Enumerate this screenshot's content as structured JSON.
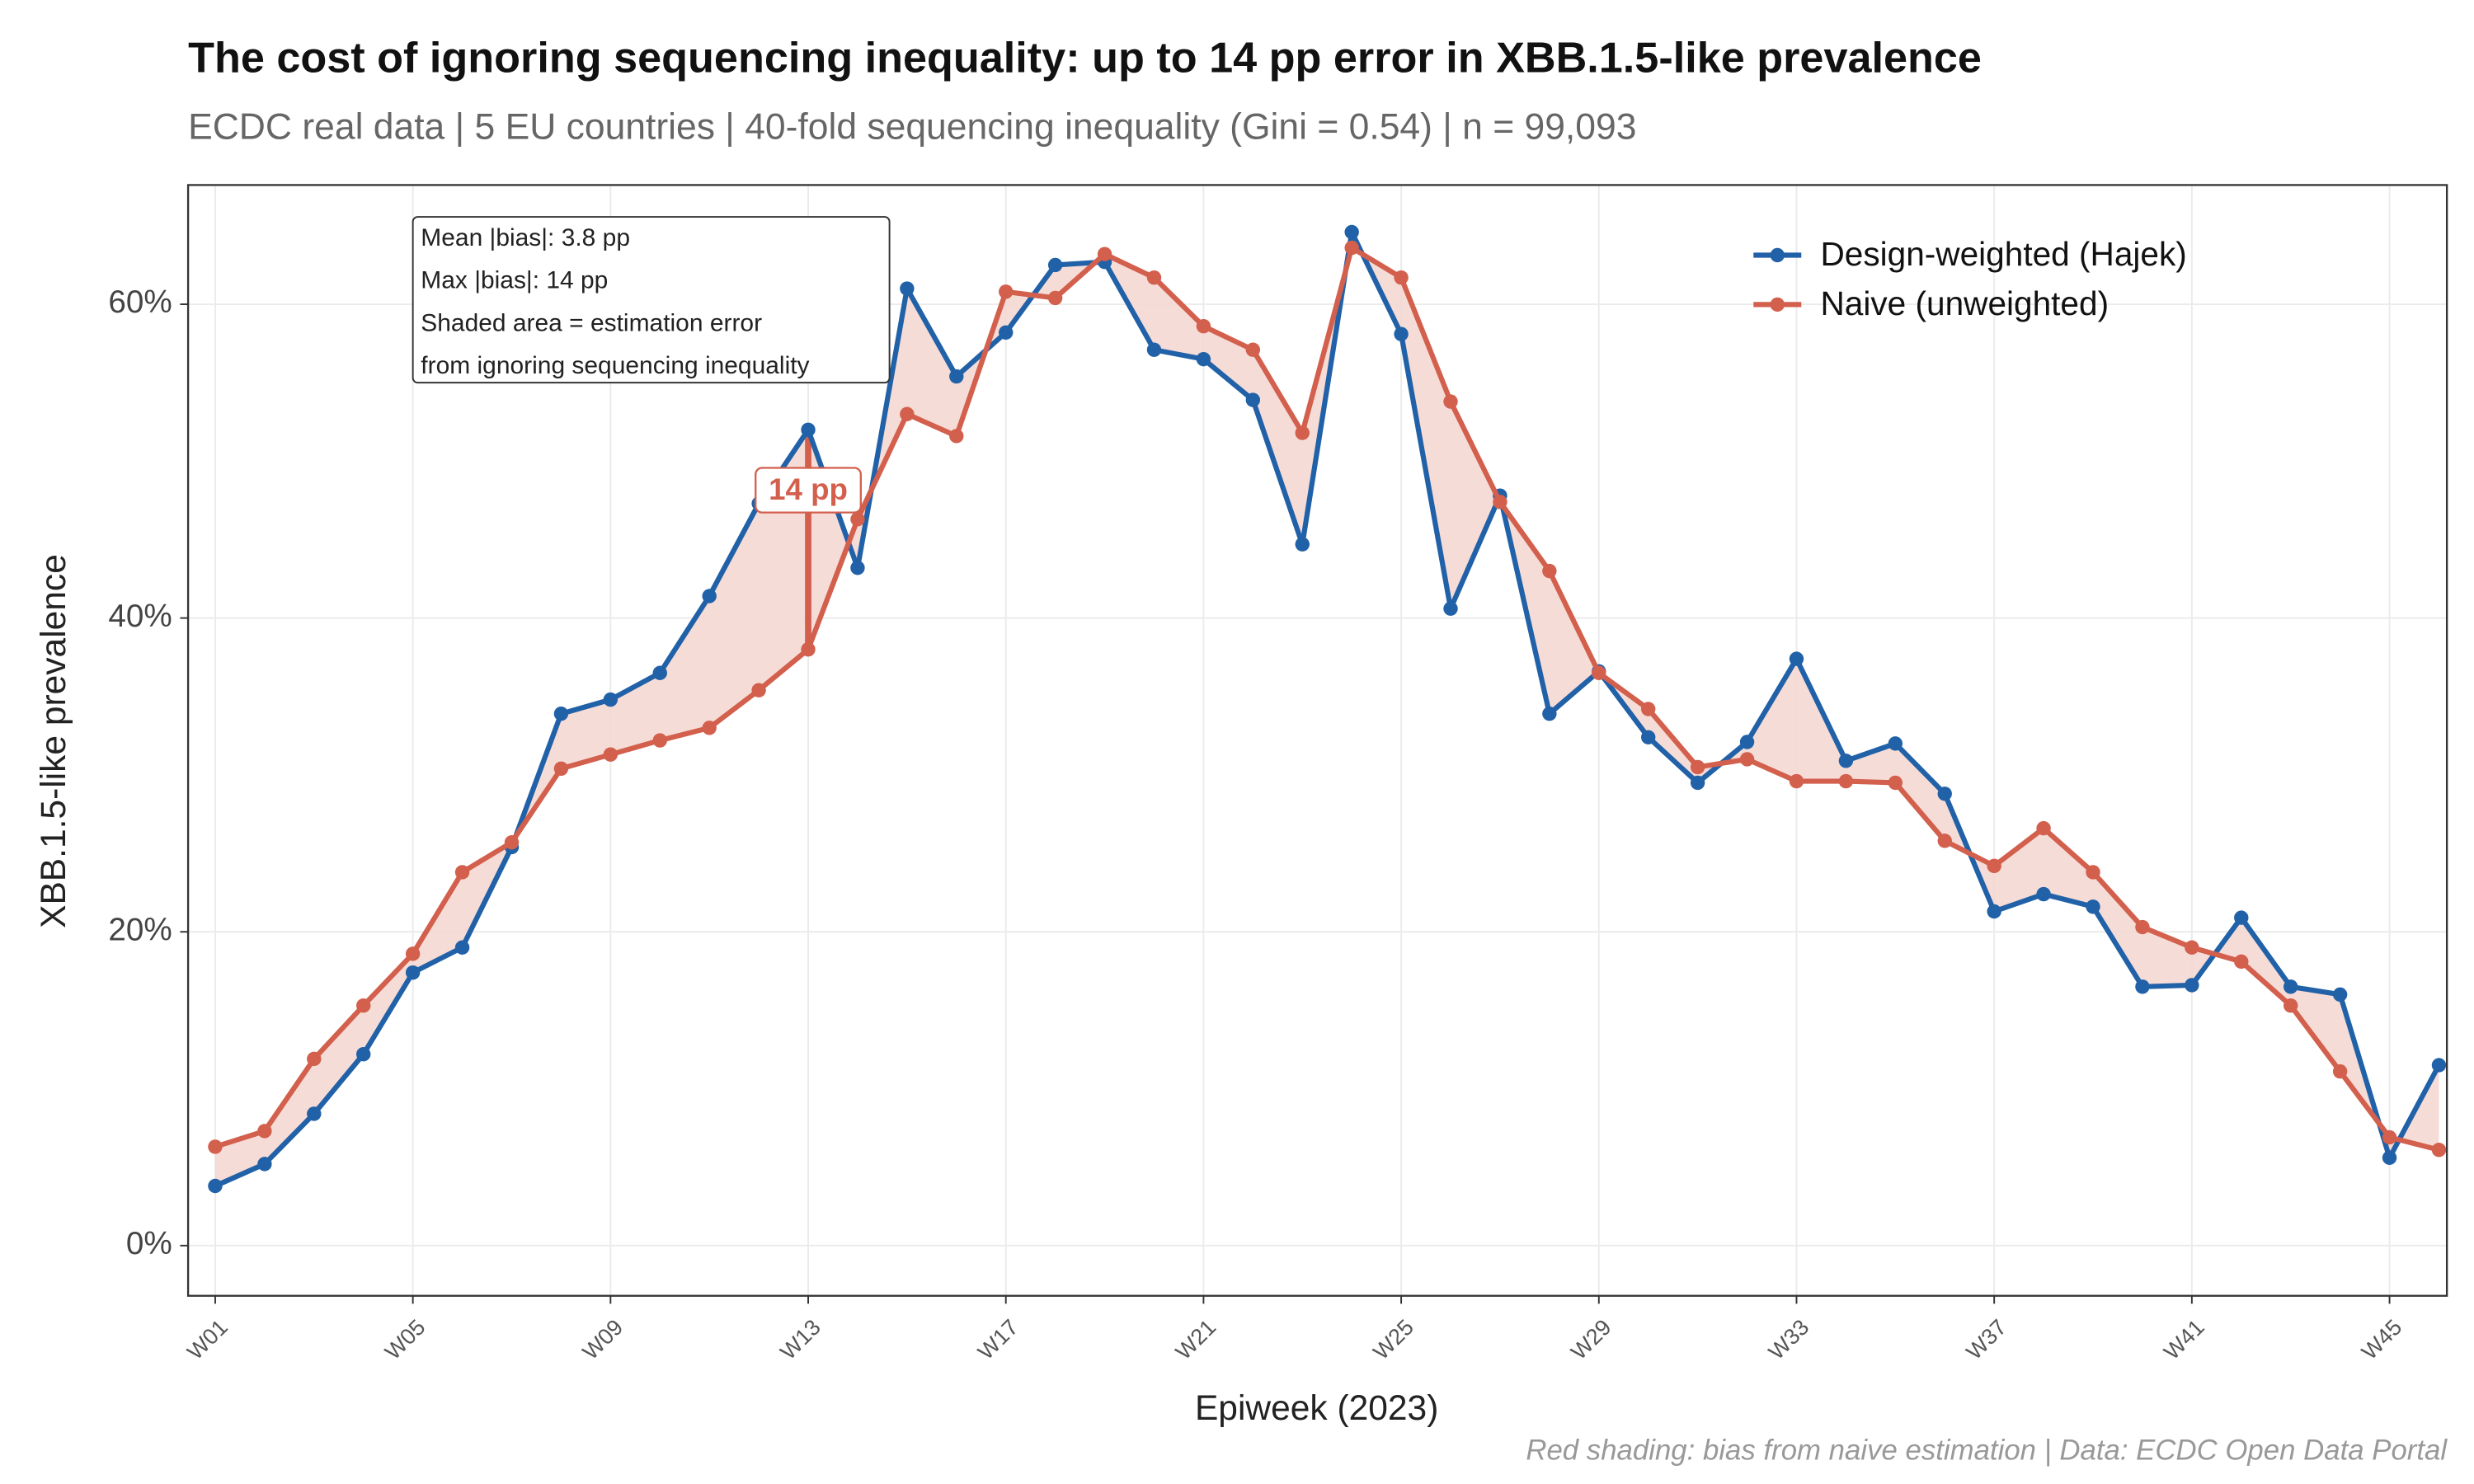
{
  "chart_data": {
    "type": "line",
    "title": "The cost of ignoring sequencing inequality: up to 14 pp error in XBB.1.5-like prevalence",
    "subtitle": "ECDC real data | 5 EU countries | 40-fold sequencing inequality (Gini = 0.54) | n = 99,093",
    "x_label": "Epiweek (2023)",
    "y_label": "XBB.1.5-like prevalence",
    "caption": "Red shading: bias from naive estimation | Data: ECDC Open Data Portal",
    "annotation_box": [
      "Mean |bias|: 3.8 pp",
      "Max |bias|: 14 pp",
      "Shaded area = estimation error",
      "from ignoring sequencing inequality"
    ],
    "max_bias_label": "14 pp",
    "categories": [
      "W01",
      null,
      null,
      null,
      "W05",
      null,
      null,
      null,
      "W09",
      null,
      null,
      null,
      "W13",
      null,
      null,
      null,
      "W17",
      null,
      null,
      null,
      "W21",
      null,
      null,
      null,
      "W25",
      null,
      null,
      null,
      "W29",
      null,
      null,
      null,
      "W33",
      null,
      null,
      null,
      "W37",
      null,
      null,
      null,
      "W41",
      null,
      null,
      null,
      "W45",
      null
    ],
    "series": [
      {
        "name": "Design-weighted (Hajek)",
        "color": "#2161a8",
        "values": [
          3.8,
          5.2,
          8.4,
          12.2,
          17.4,
          19.0,
          25.4,
          33.9,
          34.8,
          36.5,
          41.4,
          47.3,
          52.0,
          43.2,
          61.0,
          55.4,
          58.2,
          62.5,
          62.7,
          57.1,
          56.5,
          53.9,
          44.7,
          64.6,
          58.1,
          40.6,
          47.8,
          33.9,
          36.6,
          32.4,
          29.5,
          32.1,
          37.4,
          30.9,
          32.0,
          28.8,
          21.3,
          22.4,
          21.6,
          16.5,
          16.6,
          20.9,
          16.5,
          16.0,
          5.6,
          11.5
        ]
      },
      {
        "name": "Naive (unweighted)",
        "color": "#d35f4d",
        "values": [
          6.3,
          7.3,
          11.9,
          15.3,
          18.6,
          23.8,
          25.7,
          30.4,
          31.3,
          32.2,
          33.0,
          35.4,
          38.0,
          46.3,
          53.0,
          51.6,
          60.8,
          60.4,
          63.2,
          61.7,
          58.6,
          57.1,
          51.8,
          63.6,
          61.7,
          53.8,
          47.4,
          43.0,
          36.5,
          34.2,
          30.5,
          31.0,
          29.6,
          29.6,
          29.5,
          25.8,
          24.2,
          26.6,
          23.8,
          20.3,
          19.0,
          18.1,
          15.3,
          11.1,
          6.9,
          6.1
        ]
      }
    ],
    "ribbon_color": "#f5d8d3",
    "ylim": [
      -3.2,
      67.6
    ],
    "yticks": [
      {
        "value": 0,
        "label": "0%"
      },
      {
        "value": 20,
        "label": "20%"
      },
      {
        "value": 40,
        "label": "40%"
      },
      {
        "value": 60,
        "label": "60%"
      }
    ],
    "grid": true,
    "legend": "top-right"
  }
}
